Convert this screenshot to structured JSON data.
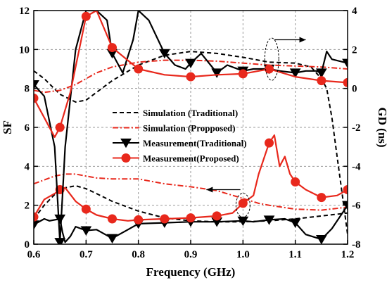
{
  "chart_data": {
    "type": "line",
    "xlabel": "Frequency  (GHz)",
    "ylabel_left": "SF",
    "ylabel_right": "GD (ns)",
    "xlim": [
      0.6,
      1.2
    ],
    "ylim_left": [
      0,
      12
    ],
    "ylim_right": [
      -8,
      4
    ],
    "x_ticks": [
      "0.6",
      "0.7",
      "0.8",
      "0.9",
      "1.0",
      "1.1",
      "1.2"
    ],
    "x_tick_values": [
      0.6,
      0.7,
      0.8,
      0.9,
      1.0,
      1.1,
      1.2
    ],
    "y_left_ticks": [
      "0",
      "2",
      "4",
      "6",
      "8",
      "10",
      "12"
    ],
    "y_left_tick_values": [
      0,
      2,
      4,
      6,
      8,
      10,
      12
    ],
    "y_right_ticks": [
      "-8",
      "-6",
      "-4",
      "-2",
      "0",
      "2",
      "4"
    ],
    "y_right_tick_values": [
      -8,
      -6,
      -4,
      -2,
      0,
      2,
      4
    ],
    "grid": "dashed",
    "legend_position": "center",
    "series": [
      {
        "name": "Simulation (Traditional)",
        "axis": "left",
        "group": "SF",
        "color": "#000000",
        "dash": "6,4",
        "marker": "none",
        "x": [
          0.6,
          0.62,
          0.64,
          0.66,
          0.68,
          0.7,
          0.72,
          0.75,
          0.8,
          0.85,
          0.9,
          0.95,
          1.0,
          1.05,
          1.1,
          1.15,
          1.2
        ],
        "y": [
          1.3,
          2.0,
          2.55,
          2.9,
          3.0,
          2.85,
          2.6,
          2.2,
          1.7,
          1.35,
          1.2,
          1.15,
          1.15,
          1.2,
          1.3,
          1.45,
          1.6
        ]
      },
      {
        "name": "Simulation (Propposed)",
        "axis": "left",
        "group": "SF",
        "color": "#e8281c",
        "dash": "8,3,2,3",
        "marker": "none",
        "x": [
          0.6,
          0.62,
          0.64,
          0.66,
          0.68,
          0.7,
          0.72,
          0.75,
          0.8,
          0.85,
          0.9,
          0.95,
          1.0,
          1.03,
          1.05,
          1.1,
          1.15,
          1.2
        ],
        "y": [
          3.1,
          3.3,
          3.5,
          3.6,
          3.6,
          3.5,
          3.4,
          3.35,
          3.35,
          3.1,
          2.95,
          2.75,
          2.35,
          2.1,
          2.0,
          1.8,
          1.75,
          1.9
        ]
      },
      {
        "name": "Measurement(Traditional)",
        "axis": "left",
        "group": "SF",
        "color": "#000000",
        "dash": "",
        "marker": "triangle-down",
        "x": [
          0.6,
          0.62,
          0.63,
          0.65,
          0.655,
          0.66,
          0.67,
          0.68,
          0.7,
          0.72,
          0.75,
          0.78,
          0.8,
          0.85,
          0.9,
          0.95,
          1.0,
          1.02,
          1.05,
          1.08,
          1.1,
          1.12,
          1.15,
          1.17,
          1.2
        ],
        "y": [
          1.0,
          1.3,
          1.2,
          1.3,
          0.6,
          0.1,
          0.4,
          0.9,
          0.7,
          0.75,
          0.3,
          0.75,
          1.05,
          1.1,
          1.15,
          1.15,
          1.2,
          1.15,
          1.25,
          1.3,
          1.1,
          0.5,
          0.25,
          0.8,
          2.0
        ],
        "marker_x": [
          0.6,
          0.65,
          0.7,
          0.75,
          0.8,
          0.85,
          0.9,
          0.95,
          1.0,
          1.05,
          1.1,
          1.15,
          1.2
        ]
      },
      {
        "name": "Measurement(Proposed)",
        "axis": "left",
        "group": "SF",
        "color": "#e8281c",
        "dash": "",
        "marker": "circle",
        "x": [
          0.6,
          0.62,
          0.64,
          0.65,
          0.66,
          0.68,
          0.7,
          0.72,
          0.75,
          0.78,
          0.8,
          0.85,
          0.9,
          0.95,
          0.98,
          1.0,
          1.02,
          1.03,
          1.05,
          1.06,
          1.07,
          1.08,
          1.09,
          1.1,
          1.12,
          1.15,
          1.18,
          1.2
        ],
        "y": [
          1.4,
          2.3,
          2.6,
          2.8,
          2.9,
          2.2,
          1.8,
          1.5,
          1.3,
          1.2,
          1.25,
          1.3,
          1.35,
          1.45,
          1.6,
          2.1,
          2.5,
          3.6,
          5.2,
          5.6,
          4.0,
          4.5,
          3.6,
          3.2,
          2.8,
          2.4,
          2.5,
          2.8
        ],
        "marker_x": [
          0.6,
          0.65,
          0.7,
          0.75,
          0.8,
          0.85,
          0.9,
          0.95,
          1.0,
          1.05,
          1.1,
          1.15,
          1.2
        ]
      },
      {
        "name": "",
        "axis": "right",
        "group": "GD",
        "color": "#000000",
        "dash": "6,4",
        "marker": "none",
        "x": [
          0.6,
          0.62,
          0.65,
          0.68,
          0.7,
          0.72,
          0.75,
          0.8,
          0.85,
          0.9,
          0.95,
          1.0,
          1.05,
          1.1,
          1.13,
          1.15,
          1.16,
          1.17,
          1.18,
          1.19,
          1.2
        ],
        "y": [
          0.9,
          0.5,
          -0.3,
          -0.7,
          -0.6,
          -0.2,
          0.4,
          1.2,
          1.7,
          1.9,
          1.8,
          1.6,
          1.35,
          1.3,
          1.1,
          0.5,
          0.0,
          -1.5,
          -3.5,
          -5.5,
          -7.5
        ]
      },
      {
        "name": "",
        "axis": "right",
        "group": "GD",
        "color": "#e8281c",
        "dash": "8,3,2,3",
        "marker": "none",
        "x": [
          0.6,
          0.62,
          0.65,
          0.68,
          0.7,
          0.72,
          0.75,
          0.8,
          0.85,
          0.9,
          0.95,
          1.0,
          1.05,
          1.1,
          1.15,
          1.2
        ],
        "y": [
          -0.1,
          -0.2,
          -0.1,
          0.2,
          0.5,
          0.8,
          1.1,
          1.35,
          1.45,
          1.45,
          1.4,
          1.3,
          1.2,
          1.15,
          1.1,
          1.0
        ]
      },
      {
        "name": "",
        "axis": "right",
        "group": "GD",
        "color": "#000000",
        "dash": "",
        "marker": "triangle-down",
        "x": [
          0.6,
          0.62,
          0.64,
          0.65,
          0.66,
          0.68,
          0.7,
          0.72,
          0.74,
          0.75,
          0.77,
          0.79,
          0.8,
          0.82,
          0.85,
          0.87,
          0.89,
          0.9,
          0.92,
          0.95,
          0.97,
          1.0,
          1.02,
          1.05,
          1.07,
          1.1,
          1.12,
          1.14,
          1.15,
          1.16,
          1.17,
          1.2
        ],
        "y": [
          0.2,
          -0.4,
          -3.0,
          -7.9,
          -3.0,
          2.0,
          4.0,
          4.0,
          3.5,
          1.8,
          0.8,
          2.5,
          4.0,
          3.5,
          1.8,
          1.2,
          1.0,
          1.3,
          1.8,
          0.8,
          1.2,
          0.9,
          1.0,
          1.0,
          0.9,
          0.8,
          0.9,
          0.9,
          0.8,
          1.9,
          1.5,
          1.3
        ],
        "marker_x": [
          0.6,
          0.65,
          0.75,
          0.85,
          0.9,
          0.95,
          1.0,
          1.05,
          1.1,
          1.15,
          1.2
        ]
      },
      {
        "name": "",
        "axis": "right",
        "group": "GD",
        "color": "#e8281c",
        "dash": "",
        "marker": "circle",
        "x": [
          0.6,
          0.62,
          0.64,
          0.65,
          0.67,
          0.7,
          0.72,
          0.75,
          0.8,
          0.85,
          0.9,
          0.95,
          1.0,
          1.05,
          1.1,
          1.15,
          1.2
        ],
        "y": [
          -0.5,
          -1.5,
          -2.5,
          -2.0,
          -0.2,
          3.7,
          4.0,
          2.1,
          1.0,
          0.7,
          0.6,
          0.7,
          0.75,
          1.0,
          0.6,
          0.4,
          0.3
        ],
        "marker_x": [
          0.6,
          0.65,
          0.7,
          0.75,
          0.8,
          0.9,
          1.0,
          1.05,
          1.15,
          1.2
        ]
      }
    ],
    "annotations": [
      {
        "kind": "ellipse",
        "target": "GD",
        "x": 1.055,
        "y_right": 1.5
      },
      {
        "kind": "arrow",
        "direction": "right",
        "x_from": 1.06,
        "x_to": 1.12,
        "y_right": 2.5
      },
      {
        "kind": "ellipse",
        "target": "SF",
        "x": 1.0,
        "y_left": 2.0
      },
      {
        "kind": "arrow",
        "direction": "left",
        "x_from": 0.995,
        "x_to": 0.93,
        "y_left": 2.8
      }
    ]
  }
}
